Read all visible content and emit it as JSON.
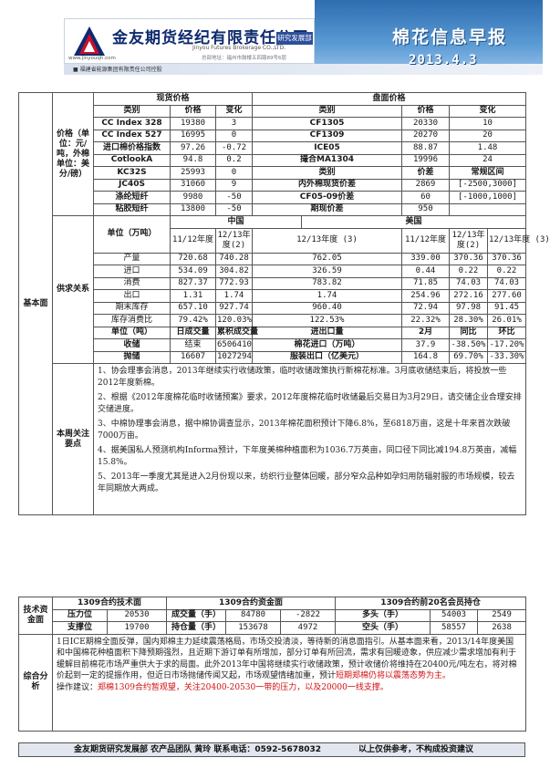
{
  "header": {
    "company_cn": "金友期货经纪有限责任公司",
    "company_en": "Jinyou Futures Brokerage CO.,LTD.",
    "dept": "研究发展部",
    "website": "www.jinyouqh.com",
    "address": "总部地址：福州市鼓楼五四路89号6层",
    "subline": "■ 福建省能源集团有限责任公司控股",
    "title": "棉花信息早报",
    "date": "2013.4.3",
    "brand_color": "#0e2a6e",
    "banner_color": "#2e6db0"
  },
  "sections": {
    "basic": "基本面",
    "price": "价格（单位：元/吨，外棉单位：美分/磅）",
    "supply": "供求关系",
    "news_label": "本周关注要点",
    "tech_label": "技术资金面",
    "summary_label": "综合分析"
  },
  "prices": {
    "spot_header": "现货价格",
    "futures_header": "盘面价格",
    "col_kind": "类别",
    "col_price": "价格",
    "col_change": "变化",
    "col_spread": "价差",
    "col_range": "常规区间",
    "spot": [
      {
        "name": "CC Index 328",
        "price": "19380",
        "change": "3"
      },
      {
        "name": "CC Index 527",
        "price": "16995",
        "change": "0"
      },
      {
        "name": "进口棉价格指数",
        "price": "97.26",
        "change": "-0.72"
      },
      {
        "name": "CotlookA",
        "price": "94.8",
        "change": "0.2"
      },
      {
        "name": "KC32S",
        "price": "25993",
        "change": "0"
      },
      {
        "name": "JC40S",
        "price": "31060",
        "change": "9"
      },
      {
        "name": "涤纶短纤",
        "price": "9980",
        "change": "-50"
      },
      {
        "name": "粘胶短纤",
        "price": "13800",
        "change": "-50"
      }
    ],
    "futures": [
      {
        "name": "CF1305",
        "price": "20330",
        "change": "10"
      },
      {
        "name": "CF1309",
        "price": "20270",
        "change": "20"
      },
      {
        "name": "ICE05",
        "price": "88.87",
        "change": "1.48"
      },
      {
        "name": "撮合MA1304",
        "price": "19996",
        "change": "24"
      }
    ],
    "spreads": [
      {
        "name": "内外棉现货价差",
        "spread": "2869",
        "range": "[-2500,3000]"
      },
      {
        "name": "CF05-09价差",
        "spread": "60",
        "range": "[-1000,1000]"
      },
      {
        "name": "期现价差",
        "spread": "950",
        "range": ""
      }
    ]
  },
  "supply": {
    "china": "中国",
    "usa": "美国",
    "unit": "单位（万吨）",
    "periods_china": [
      "11/12年度",
      "12/13年度(2)",
      "12/13年度 (3)"
    ],
    "periods_usa": [
      "11/12年度",
      "12/13年度(2)",
      "12/13年度 (3)"
    ],
    "rows": [
      {
        "name": "产量",
        "cn": [
          "720.68",
          "740.28",
          "762.05"
        ],
        "us": [
          "339.00",
          "370.36",
          "370.36"
        ]
      },
      {
        "name": "进口",
        "cn": [
          "534.09",
          "304.82",
          "326.59"
        ],
        "us": [
          "0.44",
          "0.22",
          "0.22"
        ]
      },
      {
        "name": "消费",
        "cn": [
          "827.37",
          "772.93",
          "783.82"
        ],
        "us": [
          "71.85",
          "74.03",
          "74.03"
        ]
      },
      {
        "name": "出口",
        "cn": [
          "1.31",
          "1.74",
          "1.74"
        ],
        "us": [
          "254.96",
          "272.16",
          "277.60"
        ]
      },
      {
        "name": "期末库存",
        "cn": [
          "657.10",
          "927.74",
          "960.40"
        ],
        "us": [
          "72.94",
          "97.98",
          "91.45"
        ]
      },
      {
        "name": "库存消费比",
        "cn": [
          "79.42%",
          "120.03%",
          "122.53%"
        ],
        "us": [
          "22.32%",
          "28.30%",
          "26.01%"
        ]
      }
    ],
    "deal_headers": [
      "单位（吨）",
      "日成交量",
      "累积成交量",
      "进出口量",
      "2月",
      "同比",
      "环比"
    ],
    "deal_rows": [
      {
        "name": "收储",
        "daily": "结束",
        "total": "6506410",
        "trade": "棉花进口（万吨）",
        "feb": "37.9",
        "yoy": "-38.50%",
        "mom": "-17.20%"
      },
      {
        "name": "抛储",
        "daily": "16607",
        "total": "1027294",
        "trade": "服装出口（亿美元）",
        "feb": "164.8",
        "yoy": "69.70%",
        "mom": "-33.30%"
      }
    ]
  },
  "news": [
    "1、协会理事会消息，2013年继续实行收储政策，临时收储政策执行新棉花标准。3月底收储结束后，将投放一些2012年度新棉。",
    "2、根据《2012年度棉花临时收储预案》要求，2012年度棉花临时收储最后交易日为3月29日，请交储企业合理安排交储进度。",
    "3、中棉协理事会消息，据中棉协调查显示，2013年棉花面积预计下降6.8%，至6818万亩，这是十年来首次跌破7000万亩。",
    "4、据美国私人预测机构Informa预计，下年度美棉种植面积为1036.7万英亩，同口径下同比减194.8万英亩，减幅15.8%。",
    "5、2013年一季度尤其是进入2月份现以来，纺织行业整体回暖，部分窄众品种如孕妇用防辐射服的市场规模，较去年同期放大两成。"
  ],
  "tech": {
    "tech_title": "1309合约技术面",
    "fund_title": "1309合约资金面",
    "top20_title": "1309合约前20名会员持仓",
    "resistance_label": "压力位",
    "resistance": "20530",
    "support_label": "支撑位",
    "support": "19700",
    "volume_label": "成交量（手）",
    "volume": "84780",
    "volume_change": "-2822",
    "oi_label": "持仓量（手）",
    "oi": "153678",
    "oi_change": "4972",
    "long_label": "多头（手）",
    "long": "54003",
    "long_change": "2549",
    "short_label": "空头（手）",
    "short": "58557",
    "short_change": "2638"
  },
  "summary": {
    "text": "1日ICE期棉全面反弹，国内郑棉主力延续震荡格局，市场交投清淡，等待新的消息面指引。从基本面来看，2013/14年度美国和中国棉花种植面积下降预期强烈，且近期下游订单有所增加，部分订单有所回流，需求有回暖迹象，供应减少需求增加有利于缓解目前棉花市场严重供大于求的局面。此外2013年中国将继续实行收储政策，预计收储价将维持在20400元/吨左右，将对棉价起到一定的提振作用，但近日市场抛储传闻又起，市场观望情绪加重，预计",
    "text_red": "短期郑棉仍将以震荡态势为主。",
    "advice_label": "操作建议：",
    "advice": "郑棉1309合约暂观望，关注20400-20530一带的压力，以及20000一线支撑。"
  },
  "footer": {
    "left": "金友期货研究发展部 农产品团队 黄玲   联系电话：0592-5678032",
    "right": "以上仅供参考，不构成投资建议"
  }
}
